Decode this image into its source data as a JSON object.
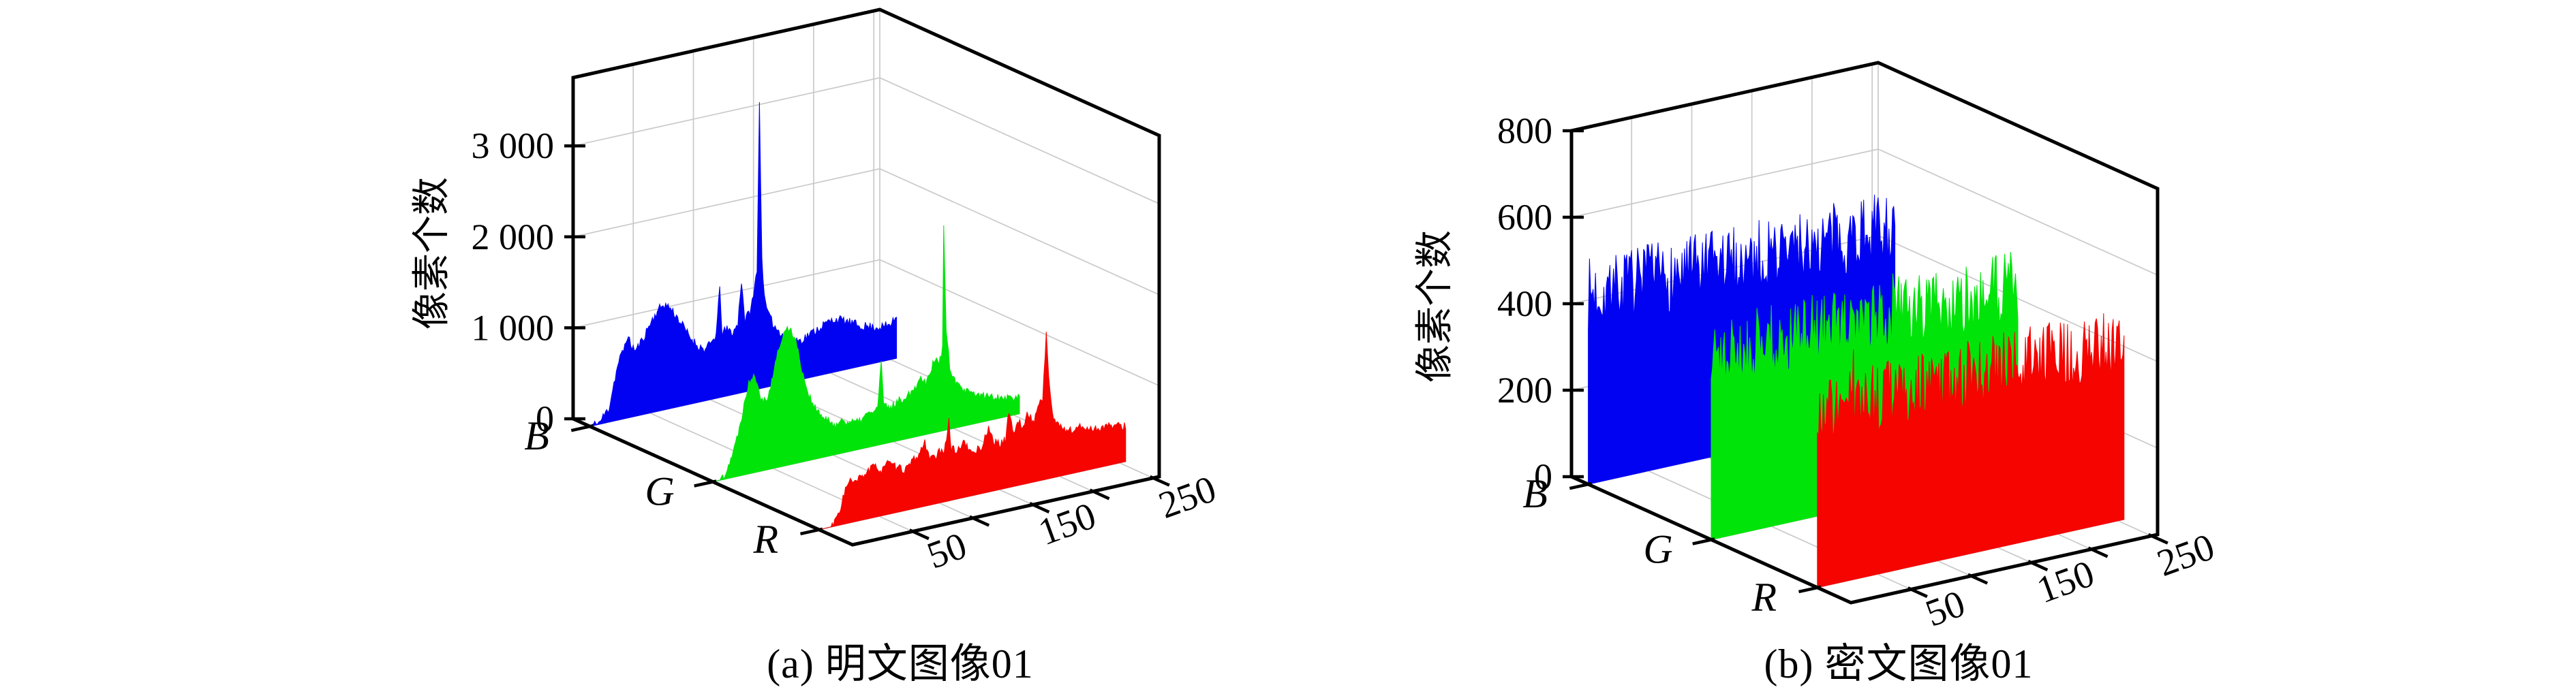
{
  "figure": {
    "background": "#ffffff",
    "grid_color": "#c9c9c9",
    "axis_color": "#000000"
  },
  "chart_data": [
    {
      "type": "bar",
      "subtype": "3d-rgb-histogram-ribbons",
      "caption": "(a) 明文图像01",
      "ylabel": "像素个数",
      "x_range": [
        0,
        255
      ],
      "x_tick_values": [
        50,
        100,
        150,
        200,
        250
      ],
      "x_tick_labels": [
        {
          "v": 50,
          "t": "50"
        },
        {
          "v": 150,
          "t": "150"
        },
        {
          "v": 250,
          "t": "250"
        }
      ],
      "y_range": [
        0,
        3750
      ],
      "y_ticks": [
        {
          "v": 0,
          "t": "0"
        },
        {
          "v": 1000,
          "t": "1 000"
        },
        {
          "v": 2000,
          "t": "2 000"
        },
        {
          "v": 3000,
          "t": "3 000"
        }
      ],
      "depth_labels": [
        "B",
        "G",
        "R"
      ],
      "grid": true,
      "series": [
        {
          "name": "B",
          "color": "#0202f2",
          "noise": 50,
          "spike_chance": 0,
          "spike_extra": 0,
          "seed": 11,
          "envelope": [
            [
              0,
              0
            ],
            [
              8,
              20
            ],
            [
              12,
              90
            ],
            [
              16,
              160
            ],
            [
              20,
              420
            ],
            [
              24,
              640
            ],
            [
              28,
              760
            ],
            [
              31,
              900
            ],
            [
              34,
              800
            ],
            [
              38,
              720
            ],
            [
              44,
              830
            ],
            [
              50,
              980
            ],
            [
              56,
              1100
            ],
            [
              61,
              1160
            ],
            [
              66,
              1120
            ],
            [
              72,
              1000
            ],
            [
              78,
              860
            ],
            [
              84,
              720
            ],
            [
              90,
              620
            ],
            [
              96,
              560
            ],
            [
              101,
              620
            ],
            [
              105,
              700
            ],
            [
              108,
              1200
            ],
            [
              110,
              700
            ],
            [
              114,
              730
            ],
            [
              119,
              680
            ],
            [
              123,
              760
            ],
            [
              126,
              1240
            ],
            [
              129,
              780
            ],
            [
              133,
              880
            ],
            [
              136,
              1020
            ],
            [
              139,
              1340
            ],
            [
              141,
              3150
            ],
            [
              143,
              1400
            ],
            [
              146,
              900
            ],
            [
              150,
              740
            ],
            [
              155,
              620
            ],
            [
              161,
              540
            ],
            [
              168,
              470
            ],
            [
              175,
              430
            ],
            [
              182,
              470
            ],
            [
              190,
              520
            ],
            [
              197,
              560
            ],
            [
              204,
              580
            ],
            [
              210,
              550
            ],
            [
              217,
              500
            ],
            [
              224,
              450
            ],
            [
              231,
              420
            ],
            [
              238,
              390
            ],
            [
              245,
              380
            ],
            [
              251,
              390
            ],
            [
              254,
              450
            ],
            [
              255,
              460
            ]
          ]
        },
        {
          "name": "G",
          "color": "#00e40a",
          "noise": 45,
          "spike_chance": 0,
          "spike_extra": 0,
          "seed": 22,
          "envelope": [
            [
              0,
              0
            ],
            [
              6,
              0
            ],
            [
              10,
              60
            ],
            [
              14,
              180
            ],
            [
              18,
              320
            ],
            [
              22,
              520
            ],
            [
              26,
              780
            ],
            [
              30,
              1000
            ],
            [
              34,
              1100
            ],
            [
              37,
              980
            ],
            [
              40,
              820
            ],
            [
              44,
              760
            ],
            [
              48,
              900
            ],
            [
              52,
              1150
            ],
            [
              56,
              1350
            ],
            [
              60,
              1480
            ],
            [
              64,
              1500
            ],
            [
              68,
              1400
            ],
            [
              72,
              1150
            ],
            [
              76,
              900
            ],
            [
              80,
              720
            ],
            [
              85,
              560
            ],
            [
              90,
              460
            ],
            [
              96,
              380
            ],
            [
              102,
              330
            ],
            [
              108,
              360
            ],
            [
              114,
              320
            ],
            [
              120,
              300
            ],
            [
              126,
              350
            ],
            [
              132,
              380
            ],
            [
              137,
              400
            ],
            [
              140,
              920
            ],
            [
              142,
              420
            ],
            [
              147,
              380
            ],
            [
              152,
              420
            ],
            [
              158,
              450
            ],
            [
              164,
              500
            ],
            [
              169,
              560
            ],
            [
              173,
              640
            ],
            [
              177,
              580
            ],
            [
              181,
              700
            ],
            [
              185,
              820
            ],
            [
              188,
              740
            ],
            [
              191,
              900
            ],
            [
              192,
              2300
            ],
            [
              194,
              1050
            ],
            [
              197,
              700
            ],
            [
              201,
              520
            ],
            [
              206,
              420
            ],
            [
              212,
              360
            ],
            [
              218,
              320
            ],
            [
              226,
              280
            ],
            [
              234,
              250
            ],
            [
              242,
              220
            ],
            [
              250,
              190
            ],
            [
              255,
              180
            ]
          ]
        },
        {
          "name": "R",
          "color": "#f50400",
          "noise": 45,
          "spike_chance": 0,
          "spike_extra": 0,
          "seed": 33,
          "envelope": [
            [
              0,
              0
            ],
            [
              10,
              0
            ],
            [
              14,
              60
            ],
            [
              18,
              200
            ],
            [
              22,
              380
            ],
            [
              26,
              460
            ],
            [
              30,
              420
            ],
            [
              34,
              470
            ],
            [
              40,
              520
            ],
            [
              46,
              560
            ],
            [
              52,
              500
            ],
            [
              56,
              580
            ],
            [
              60,
              530
            ],
            [
              66,
              480
            ],
            [
              72,
              450
            ],
            [
              78,
              520
            ],
            [
              84,
              600
            ],
            [
              88,
              700
            ],
            [
              92,
              540
            ],
            [
              96,
              490
            ],
            [
              100,
              570
            ],
            [
              104,
              520
            ],
            [
              108,
              900
            ],
            [
              110,
              560
            ],
            [
              115,
              530
            ],
            [
              120,
              610
            ],
            [
              125,
              500
            ],
            [
              130,
              480
            ],
            [
              136,
              520
            ],
            [
              141,
              720
            ],
            [
              145,
              540
            ],
            [
              150,
              500
            ],
            [
              155,
              530
            ],
            [
              158,
              850
            ],
            [
              162,
              580
            ],
            [
              166,
              700
            ],
            [
              170,
              630
            ],
            [
              174,
              780
            ],
            [
              178,
              650
            ],
            [
              182,
              820
            ],
            [
              186,
              900
            ],
            [
              189,
              1620
            ],
            [
              191,
              1100
            ],
            [
              194,
              700
            ],
            [
              199,
              560
            ],
            [
              205,
              500
            ],
            [
              211,
              470
            ],
            [
              217,
              490
            ],
            [
              224,
              460
            ],
            [
              231,
              430
            ],
            [
              238,
              440
            ],
            [
              245,
              420
            ],
            [
              251,
              400
            ],
            [
              255,
              390
            ]
          ]
        }
      ]
    },
    {
      "type": "bar",
      "subtype": "3d-rgb-histogram-ribbons",
      "caption": "(b) 密文图像01",
      "ylabel": "像素个数",
      "x_range": [
        0,
        255
      ],
      "x_tick_values": [
        50,
        100,
        150,
        200,
        250
      ],
      "x_tick_labels": [
        {
          "v": 50,
          "t": "50"
        },
        {
          "v": 150,
          "t": "150"
        },
        {
          "v": 250,
          "t": "250"
        }
      ],
      "y_range": [
        0,
        800
      ],
      "y_ticks": [
        {
          "v": 0,
          "t": "0"
        },
        {
          "v": 200,
          "t": "200"
        },
        {
          "v": 400,
          "t": "400"
        },
        {
          "v": 600,
          "t": "600"
        },
        {
          "v": 800,
          "t": "800"
        }
      ],
      "depth_labels": [
        "B",
        "G",
        "R"
      ],
      "grid": true,
      "series": [
        {
          "name": "B",
          "color": "#0202f2",
          "noise": 85,
          "spike_chance": 0.03,
          "spike_extra": 75,
          "seed": 7,
          "envelope": [
            [
              0,
              440
            ],
            [
              255,
              440
            ]
          ]
        },
        {
          "name": "G",
          "color": "#00e40a",
          "noise": 85,
          "spike_chance": 0.03,
          "spike_extra": 75,
          "seed": 8,
          "envelope": [
            [
              0,
              430
            ],
            [
              255,
              430
            ]
          ]
        },
        {
          "name": "R",
          "color": "#f50400",
          "noise": 85,
          "spike_chance": 0.03,
          "spike_extra": 70,
          "seed": 9,
          "envelope": [
            [
              0,
              410
            ],
            [
              255,
              410
            ]
          ]
        }
      ]
    }
  ]
}
